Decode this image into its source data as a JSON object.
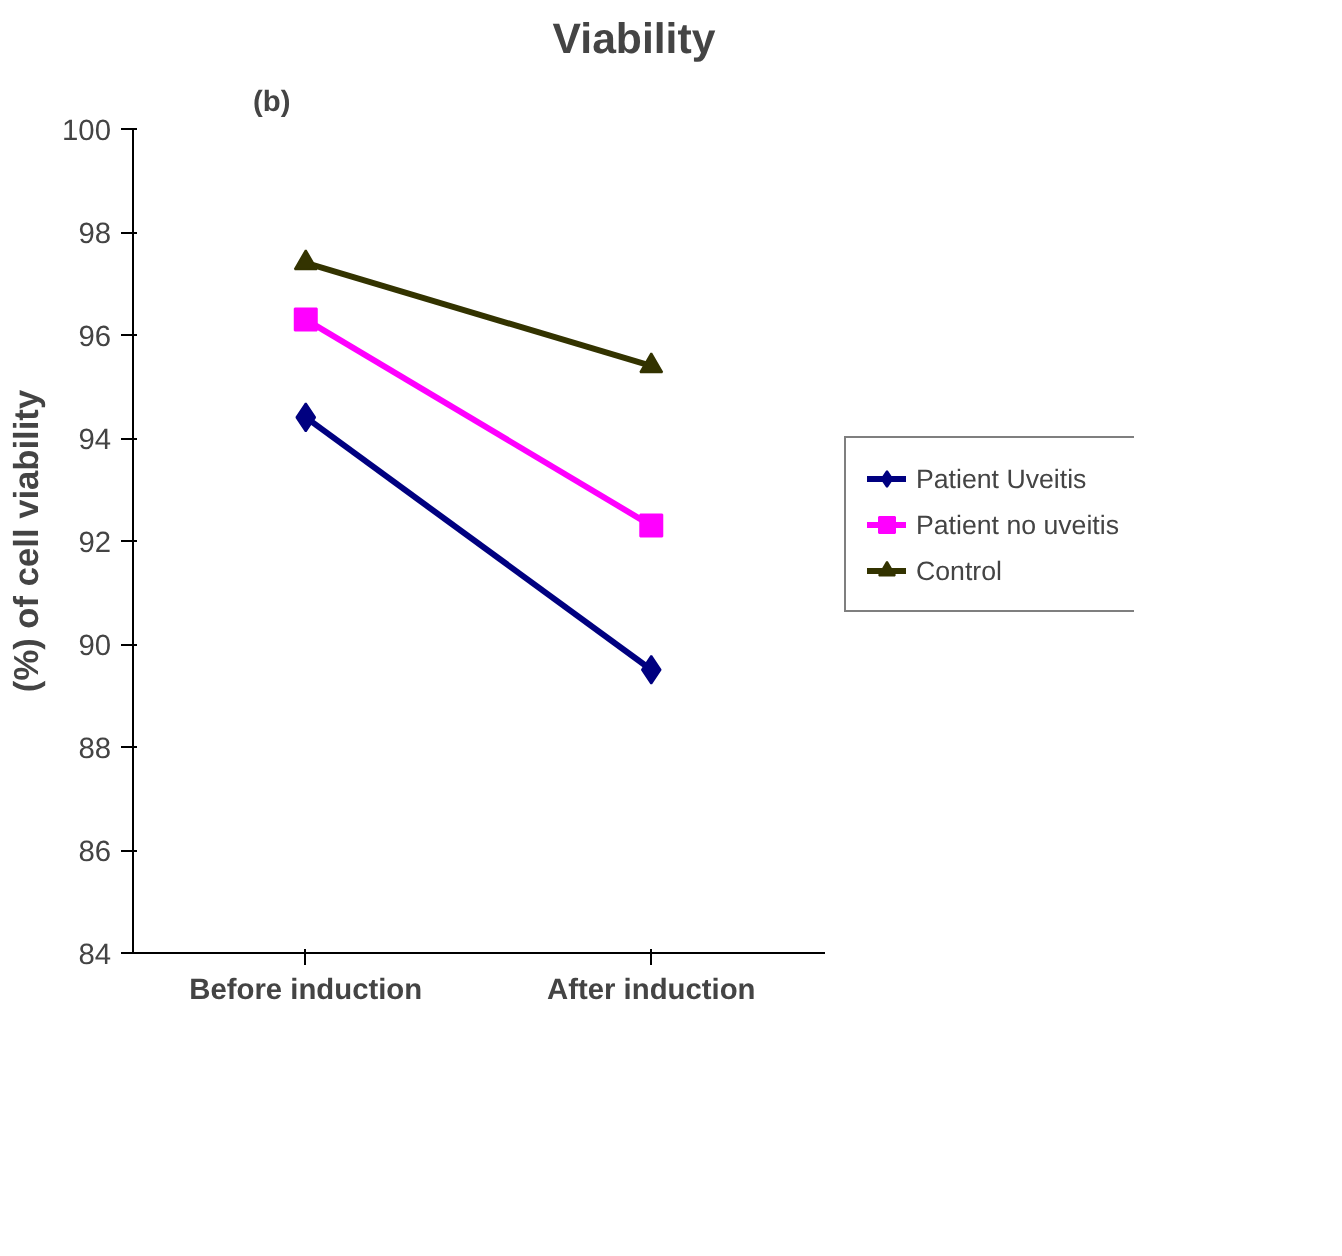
{
  "chart_data": {
    "type": "line",
    "title": "Viability",
    "ylabel": "(%) of cell viability",
    "annotations": [
      "(b)"
    ],
    "categories": [
      "Before induction",
      "After induction"
    ],
    "ylim": [
      84,
      100
    ],
    "yticks": [
      84,
      86,
      88,
      90,
      92,
      94,
      96,
      98,
      100
    ],
    "grid": false,
    "legend": "right",
    "line_style": "solid",
    "series": [
      {
        "name": "Patient Uveitis",
        "color": "#000080",
        "marker": "diamond",
        "values": [
          94.4,
          89.5
        ]
      },
      {
        "name": "Patient no uveitis",
        "color": "#ff00ff",
        "marker": "square",
        "values": [
          96.3,
          92.3
        ]
      },
      {
        "name": "Control",
        "color": "#333300",
        "marker": "triangle",
        "values": [
          97.4,
          95.4
        ]
      }
    ]
  }
}
